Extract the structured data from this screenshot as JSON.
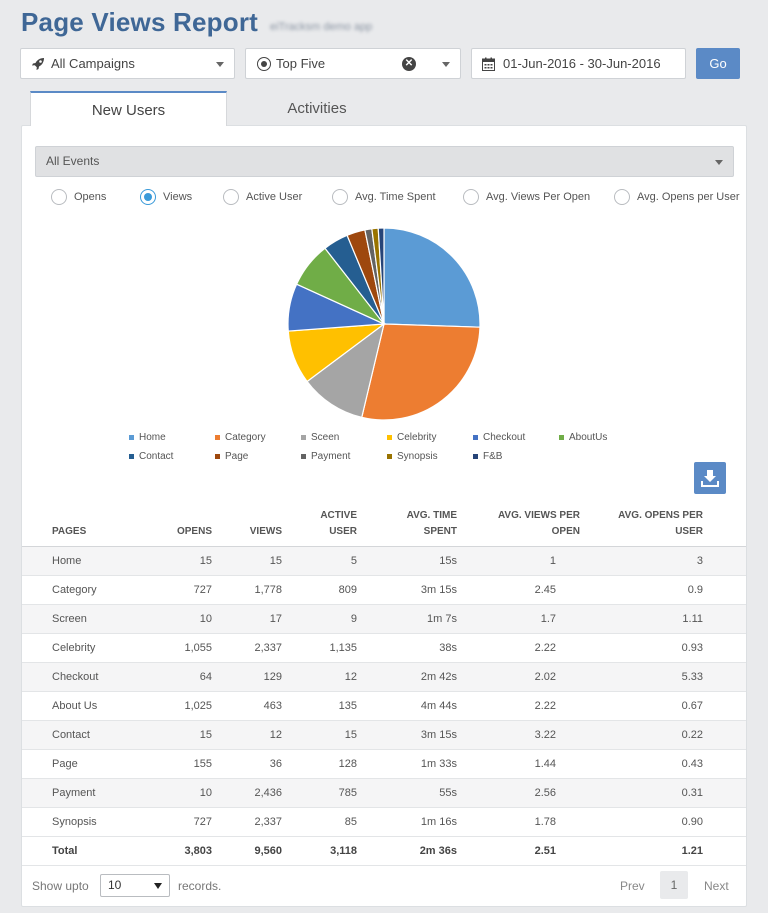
{
  "header": {
    "title": "Page Views Report",
    "subtitle": "eiTracksm demo app"
  },
  "filters": {
    "campaign": "All Campaigns",
    "top": "Top Five",
    "date_range": "01-Jun-2016 - 30-Jun-2016",
    "go_label": "Go"
  },
  "tabs": [
    {
      "label": "New Users",
      "active": true
    },
    {
      "label": "Activities",
      "active": false
    }
  ],
  "events_select": "All Events",
  "metrics": [
    {
      "label": "Opens",
      "selected": false
    },
    {
      "label": "Views",
      "selected": true
    },
    {
      "label": "Active User",
      "selected": false
    },
    {
      "label": "Avg. Time Spent",
      "selected": false
    },
    {
      "label": "Avg. Views Per Open",
      "selected": false
    },
    {
      "label": "Avg. Opens per User",
      "selected": false
    }
  ],
  "chart_data": {
    "type": "pie",
    "metric": "Views",
    "slices": [
      {
        "label": "Home",
        "value": 2400,
        "color": "#5b9bd5"
      },
      {
        "label": "Category",
        "value": 2650,
        "color": "#ed7d31"
      },
      {
        "label": "Sceen",
        "value": 1040,
        "color": "#a5a5a5"
      },
      {
        "label": "Celebrity",
        "value": 850,
        "color": "#ffc000"
      },
      {
        "label": "Checkout",
        "value": 750,
        "color": "#4472c4"
      },
      {
        "label": "AboutUs",
        "value": 720,
        "color": "#70ad47"
      },
      {
        "label": "Contact",
        "value": 400,
        "color": "#255e91"
      },
      {
        "label": "Page",
        "value": 290,
        "color": "#9e480e"
      },
      {
        "label": "Payment",
        "value": 110,
        "color": "#636363"
      },
      {
        "label": "Synopsis",
        "value": 100,
        "color": "#997300"
      },
      {
        "label": "F&B",
        "value": 90,
        "color": "#264478"
      }
    ]
  },
  "table": {
    "columns": [
      "PAGES",
      "OPENS",
      "VIEWS",
      "ACTIVE USER",
      "AVG. TIME SPENT",
      "AVG. VIEWS PER OPEN",
      "AVG. OPENS PER USER"
    ],
    "rows": [
      [
        "Home",
        "15",
        "15",
        "5",
        "15s",
        "1",
        "3"
      ],
      [
        "Category",
        "727",
        "1,778",
        "809",
        "3m 15s",
        "2.45",
        "0.9"
      ],
      [
        "Screen",
        "10",
        "17",
        "9",
        "1m 7s",
        "1.7",
        "1.11"
      ],
      [
        "Celebrity",
        "1,055",
        "2,337",
        "1,135",
        "38s",
        "2.22",
        "0.93"
      ],
      [
        "Checkout",
        "64",
        "129",
        "12",
        "2m 42s",
        "2.02",
        "5.33"
      ],
      [
        "About Us",
        "1,025",
        "463",
        "135",
        "4m 44s",
        "2.22",
        "0.67"
      ],
      [
        "Contact",
        "15",
        "12",
        "15",
        "3m 15s",
        "3.22",
        "0.22"
      ],
      [
        "Page",
        "155",
        "36",
        "128",
        "1m 33s",
        "1.44",
        "0.43"
      ],
      [
        "Payment",
        "10",
        "2,436",
        "785",
        "55s",
        "2.56",
        "0.31"
      ],
      [
        "Synopsis",
        "727",
        "2,337",
        "85",
        "1m 16s",
        "1.78",
        "0.90"
      ]
    ],
    "total": [
      "Total",
      "3,803",
      "9,560",
      "3,118",
      "2m 36s",
      "2.51",
      "1.21"
    ]
  },
  "pagination": {
    "show_label": "Show upto",
    "page_size": "10",
    "records_label": "records.",
    "prev_label": "Prev",
    "current_page": "1",
    "next_label": "Next"
  }
}
